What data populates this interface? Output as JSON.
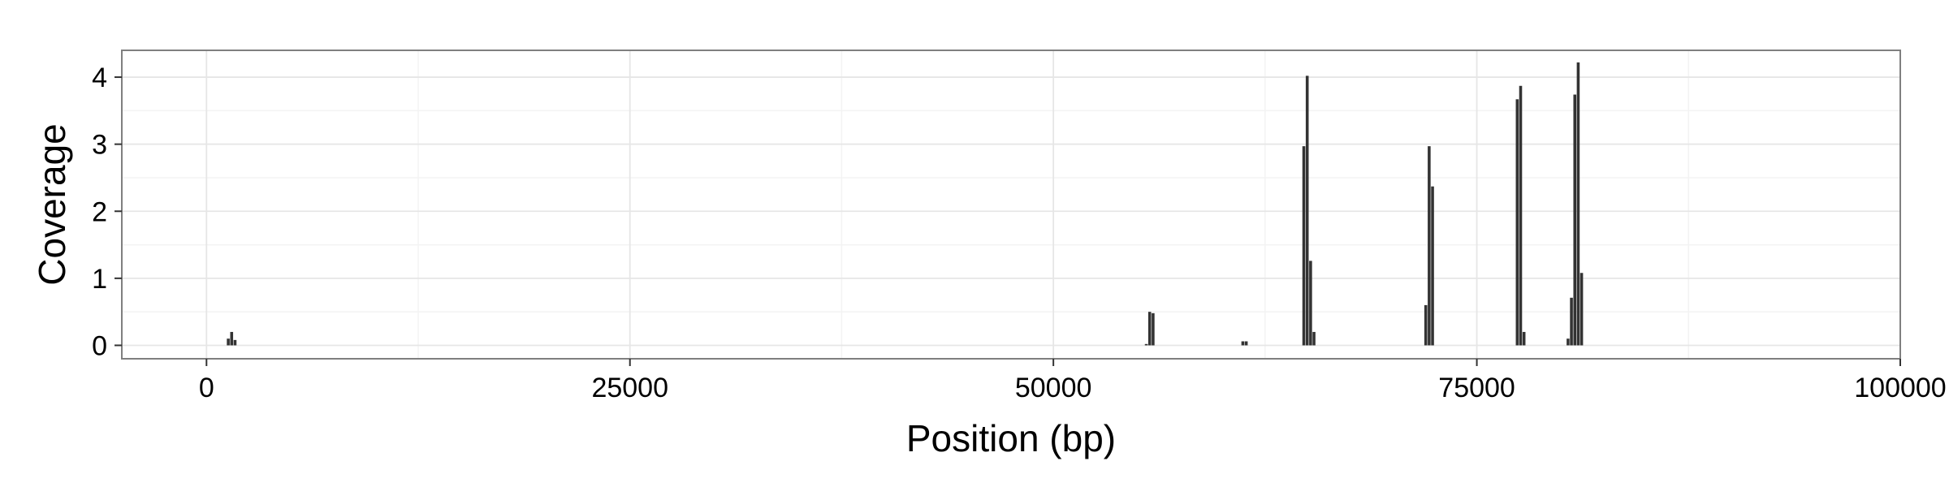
{
  "chart_data": {
    "type": "bar",
    "title": "",
    "xlabel": "Position (bp)",
    "ylabel": "Coverage",
    "xlim": [
      -5000,
      100000
    ],
    "ylim": [
      -0.2,
      4.4
    ],
    "x_ticks": [
      0,
      25000,
      50000,
      75000,
      100000
    ],
    "x_tick_labels": [
      "0",
      "25000",
      "50000",
      "75000",
      "100000"
    ],
    "y_ticks": [
      0,
      1,
      2,
      3,
      4
    ],
    "y_tick_labels": [
      "0",
      "1",
      "2",
      "3",
      "4"
    ],
    "grid": true,
    "legend": "none",
    "bar_width": 200,
    "x": [
      1300,
      1500,
      1700,
      55500,
      55700,
      55900,
      61200,
      61400,
      64800,
      65000,
      65200,
      65400,
      72000,
      72200,
      72400,
      77400,
      77600,
      77800,
      80400,
      80600,
      80800,
      81000,
      81200
    ],
    "values": [
      0.1,
      0.2,
      0.08,
      0.02,
      0.5,
      0.48,
      0.06,
      0.06,
      2.97,
      4.02,
      1.26,
      0.2,
      0.6,
      2.97,
      2.37,
      3.67,
      3.87,
      0.2,
      0.1,
      0.71,
      3.74,
      4.22,
      1.08
    ],
    "colors": {
      "bar": "#333333",
      "panel_background": "#ffffff",
      "panel_border": "#7f7f7f",
      "grid_major": "#e6e6e6",
      "grid_minor": "#f3f3f3"
    }
  }
}
